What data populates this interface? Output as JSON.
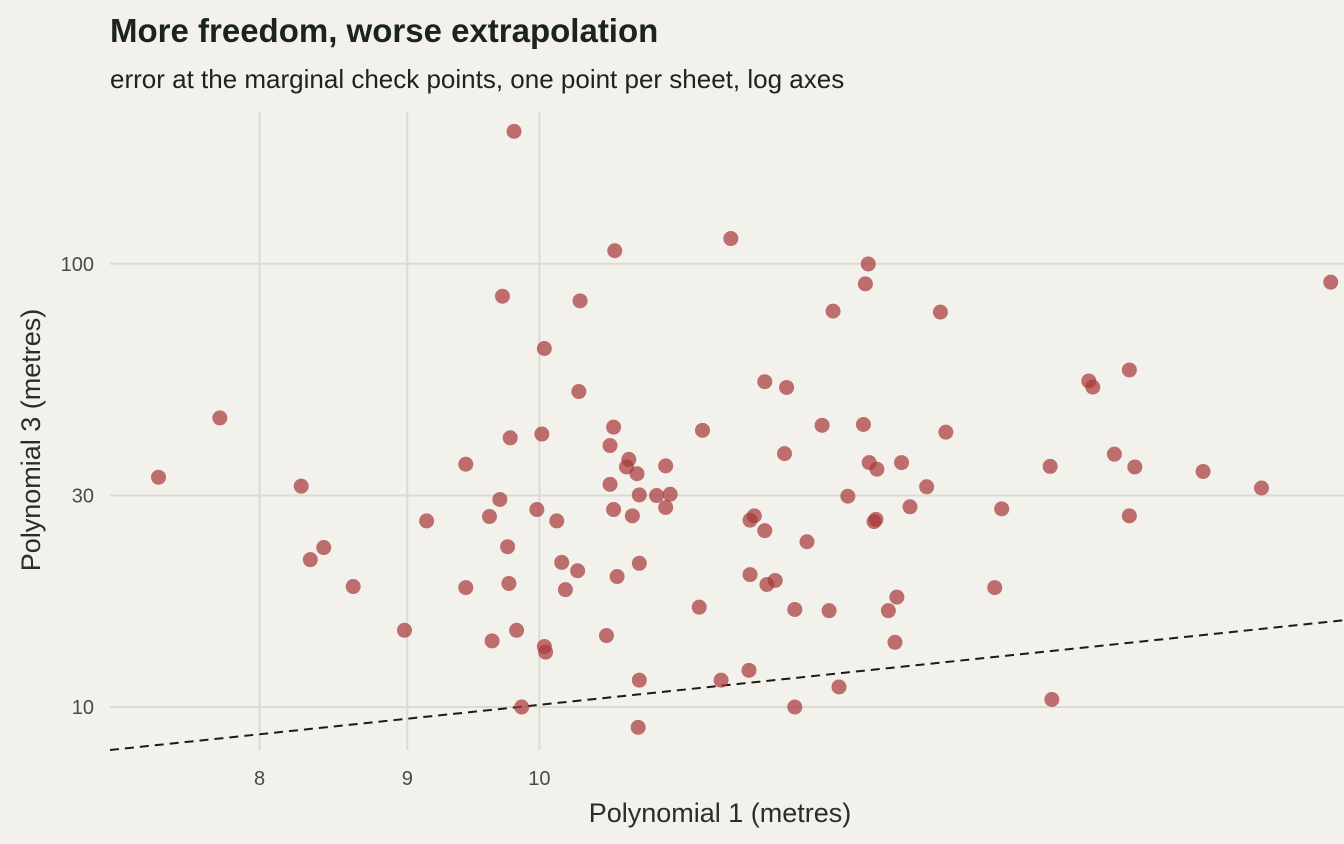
{
  "chart_data": {
    "type": "scatter",
    "title": "More freedom, worse extrapolation",
    "subtitle": "error at the marginal check points, one point per sheet, log axes",
    "xlabel": "Polynomial 1 (metres)",
    "ylabel": "Polynomial 3 (metres)",
    "x_scale": "log",
    "y_scale": "log",
    "xlim": [
      7.1,
      19.0
    ],
    "ylim": [
      8.0,
      220.0
    ],
    "x_ticks": [
      8,
      9,
      10
    ],
    "y_ticks": [
      10,
      30,
      100
    ],
    "grid": true,
    "point_color": "#a83a3a",
    "reference_line": {
      "style": "dashed",
      "color": "#1a1a1a",
      "points": [
        [
          7.1,
          8.0
        ],
        [
          19.0,
          15.7
        ]
      ]
    },
    "points": [
      {
        "x": 7.38,
        "y": 33.0
      },
      {
        "x": 7.75,
        "y": 44.9
      },
      {
        "x": 8.27,
        "y": 31.5
      },
      {
        "x": 8.33,
        "y": 21.5
      },
      {
        "x": 8.42,
        "y": 22.9
      },
      {
        "x": 8.62,
        "y": 18.7
      },
      {
        "x": 8.98,
        "y": 14.9
      },
      {
        "x": 9.14,
        "y": 26.3
      },
      {
        "x": 9.43,
        "y": 35.3
      },
      {
        "x": 9.43,
        "y": 18.6
      },
      {
        "x": 9.61,
        "y": 26.9
      },
      {
        "x": 9.63,
        "y": 14.1
      },
      {
        "x": 9.69,
        "y": 29.4
      },
      {
        "x": 9.71,
        "y": 84.5
      },
      {
        "x": 9.75,
        "y": 23.0
      },
      {
        "x": 9.76,
        "y": 19.0
      },
      {
        "x": 9.77,
        "y": 40.5
      },
      {
        "x": 9.8,
        "y": 199.0
      },
      {
        "x": 9.82,
        "y": 14.9
      },
      {
        "x": 9.86,
        "y": 10.0
      },
      {
        "x": 9.98,
        "y": 27.9
      },
      {
        "x": 10.02,
        "y": 41.3
      },
      {
        "x": 10.04,
        "y": 13.7
      },
      {
        "x": 10.05,
        "y": 13.3
      },
      {
        "x": 10.04,
        "y": 64.4
      },
      {
        "x": 10.14,
        "y": 26.3
      },
      {
        "x": 10.18,
        "y": 21.2
      },
      {
        "x": 10.21,
        "y": 18.4
      },
      {
        "x": 10.31,
        "y": 20.3
      },
      {
        "x": 10.32,
        "y": 51.5
      },
      {
        "x": 10.33,
        "y": 82.5
      },
      {
        "x": 10.55,
        "y": 14.5
      },
      {
        "x": 10.58,
        "y": 38.9
      },
      {
        "x": 10.58,
        "y": 31.8
      },
      {
        "x": 10.61,
        "y": 42.8
      },
      {
        "x": 10.61,
        "y": 27.9
      },
      {
        "x": 10.62,
        "y": 107.0
      },
      {
        "x": 10.64,
        "y": 19.7
      },
      {
        "x": 10.72,
        "y": 34.8
      },
      {
        "x": 10.74,
        "y": 36.2
      },
      {
        "x": 10.77,
        "y": 27.0
      },
      {
        "x": 10.81,
        "y": 33.6
      },
      {
        "x": 10.83,
        "y": 21.1
      },
      {
        "x": 10.83,
        "y": 30.1
      },
      {
        "x": 10.83,
        "y": 11.5
      },
      {
        "x": 10.82,
        "y": 9.0
      },
      {
        "x": 10.98,
        "y": 30.0
      },
      {
        "x": 11.06,
        "y": 28.2
      },
      {
        "x": 11.06,
        "y": 35.0
      },
      {
        "x": 11.1,
        "y": 30.2
      },
      {
        "x": 11.36,
        "y": 16.8
      },
      {
        "x": 11.39,
        "y": 42.1
      },
      {
        "x": 11.56,
        "y": 11.5
      },
      {
        "x": 11.65,
        "y": 114.0
      },
      {
        "x": 11.82,
        "y": 12.1
      },
      {
        "x": 11.83,
        "y": 26.4
      },
      {
        "x": 11.83,
        "y": 19.9
      },
      {
        "x": 11.87,
        "y": 27.0
      },
      {
        "x": 11.97,
        "y": 25.0
      },
      {
        "x": 11.97,
        "y": 54.2
      },
      {
        "x": 11.99,
        "y": 18.9
      },
      {
        "x": 12.07,
        "y": 19.3
      },
      {
        "x": 12.16,
        "y": 37.3
      },
      {
        "x": 12.18,
        "y": 52.6
      },
      {
        "x": 12.26,
        "y": 16.6
      },
      {
        "x": 12.26,
        "y": 10.0
      },
      {
        "x": 12.38,
        "y": 23.6
      },
      {
        "x": 12.53,
        "y": 43.2
      },
      {
        "x": 12.6,
        "y": 16.5
      },
      {
        "x": 12.64,
        "y": 78.2
      },
      {
        "x": 12.7,
        "y": 11.1
      },
      {
        "x": 12.79,
        "y": 29.9
      },
      {
        "x": 12.95,
        "y": 43.4
      },
      {
        "x": 12.97,
        "y": 90.1
      },
      {
        "x": 13.0,
        "y": 99.9
      },
      {
        "x": 13.01,
        "y": 35.6
      },
      {
        "x": 13.06,
        "y": 26.2
      },
      {
        "x": 13.08,
        "y": 26.5
      },
      {
        "x": 13.09,
        "y": 34.4
      },
      {
        "x": 13.21,
        "y": 16.5
      },
      {
        "x": 13.28,
        "y": 14.0
      },
      {
        "x": 13.3,
        "y": 17.7
      },
      {
        "x": 13.35,
        "y": 35.6
      },
      {
        "x": 13.44,
        "y": 28.3
      },
      {
        "x": 13.62,
        "y": 31.4
      },
      {
        "x": 13.77,
        "y": 77.8
      },
      {
        "x": 13.83,
        "y": 41.7
      },
      {
        "x": 14.38,
        "y": 18.6
      },
      {
        "x": 14.46,
        "y": 28.0
      },
      {
        "x": 15.05,
        "y": 10.4
      },
      {
        "x": 15.03,
        "y": 34.9
      },
      {
        "x": 15.5,
        "y": 54.4
      },
      {
        "x": 15.55,
        "y": 52.7
      },
      {
        "x": 15.82,
        "y": 37.2
      },
      {
        "x": 16.01,
        "y": 57.6
      },
      {
        "x": 16.01,
        "y": 27.0
      },
      {
        "x": 16.08,
        "y": 34.8
      },
      {
        "x": 16.98,
        "y": 34.0
      },
      {
        "x": 17.79,
        "y": 31.2
      },
      {
        "x": 18.8,
        "y": 90.9
      }
    ]
  }
}
